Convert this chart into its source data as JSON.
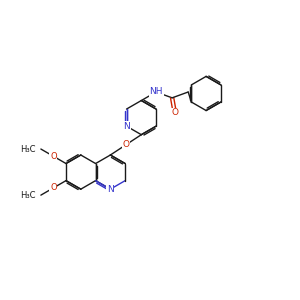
{
  "bg_color": "#ffffff",
  "bond_color": "#1a1a1a",
  "N_color": "#3333cc",
  "O_color": "#cc2200",
  "lw": 1.0,
  "fs": 6.5,
  "fig_size": [
    3.0,
    3.0
  ],
  "dpi": 100,
  "s": 0.55,
  "xlim": [
    0,
    10
  ],
  "ylim": [
    0,
    10
  ]
}
